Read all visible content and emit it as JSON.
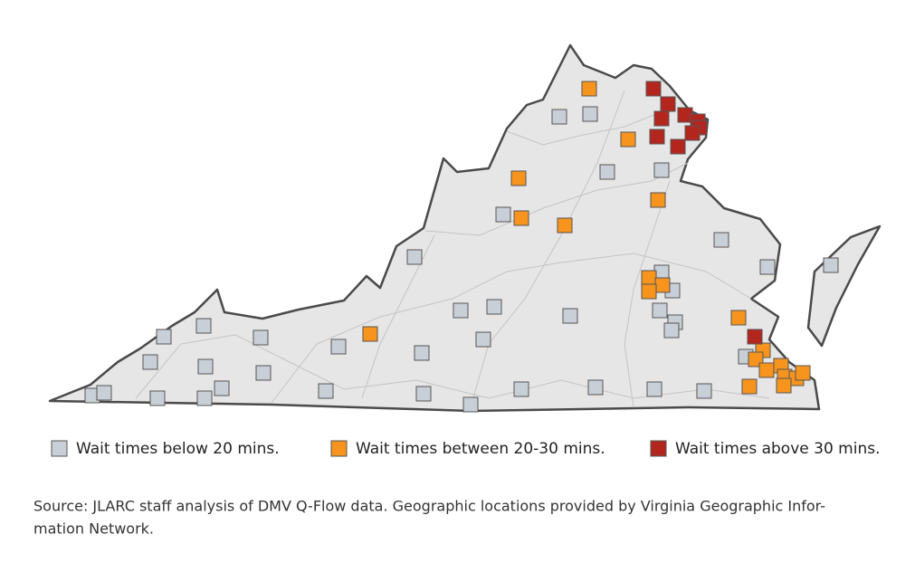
{
  "legend": {
    "items": [
      {
        "label": "Wait times below 20 mins.",
        "color": "#c9cfd6"
      },
      {
        "label": "Wait times between 20-30 mins.",
        "color": "#f7941d"
      },
      {
        "label": "Wait times above 30 mins.",
        "color": "#b3261e"
      }
    ]
  },
  "source": {
    "lines": [
      "Source: JLARC staff analysis of DMV Q-Flow data. Geographic locations provided by Virginia Geographic Infor-",
      "mation Network."
    ]
  }
}
